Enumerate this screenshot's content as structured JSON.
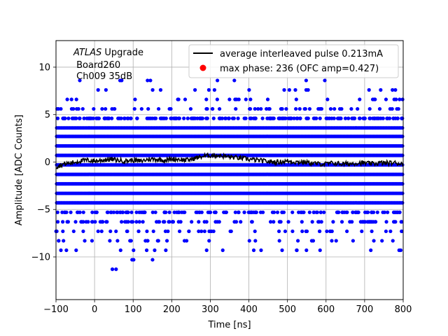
{
  "chart_data": {
    "type": "scatter",
    "title": "",
    "xlabel": "Time [ns]",
    "ylabel": "Amplitude [ADC Counts]",
    "xlim": [
      -100,
      800
    ],
    "ylim": [
      -14.5,
      12.8
    ],
    "xticks": [
      -100,
      0,
      100,
      200,
      300,
      400,
      500,
      600,
      700,
      800
    ],
    "xtick_labels": [
      "−100",
      "0",
      "100",
      "200",
      "300",
      "400",
      "500",
      "600",
      "700",
      "800"
    ],
    "yticks": [
      -10,
      -5,
      0,
      5,
      10
    ],
    "ytick_labels": [
      "−10",
      "−5",
      "0",
      "5",
      "10"
    ],
    "grid": true,
    "annotation": {
      "line1_italic": "ATLAS",
      "line1_rest": " Upgrade",
      "line2": " Board260",
      "line3": " Ch009 35dB"
    },
    "legend": {
      "placement": "upper right",
      "entries": [
        {
          "label": "average interleaved pulse 0.213mA",
          "color": "#000000",
          "marker": "line"
        },
        {
          "label": "max phase: 236 (OFC amp=0.427)",
          "color": "#ff0000",
          "marker": "circle"
        }
      ]
    },
    "series": [
      {
        "name": "max phase: 236 (OFC amp=0.427)",
        "color": "#0000ff",
        "levels": [
          {
            "y": 8.6,
            "count": 9
          },
          {
            "y": 7.6,
            "count": 17
          },
          {
            "y": 6.6,
            "count": 28
          },
          {
            "y": 5.6,
            "count": 60
          },
          {
            "y": 4.6,
            "count": 190
          },
          {
            "y": 3.6,
            "count": 220
          },
          {
            "y": 2.7,
            "count": 240
          },
          {
            "y": 1.7,
            "count": 240
          },
          {
            "y": 0.7,
            "count": 240
          },
          {
            "y": -0.3,
            "count": 240
          },
          {
            "y": -1.3,
            "count": 240
          },
          {
            "y": -2.3,
            "count": 240
          },
          {
            "y": -3.3,
            "count": 240
          },
          {
            "y": -4.3,
            "count": 220
          },
          {
            "y": -5.3,
            "count": 150
          },
          {
            "y": -6.3,
            "count": 90
          },
          {
            "y": -7.3,
            "count": 50
          },
          {
            "y": -8.3,
            "count": 30
          },
          {
            "y": -9.3,
            "count": 20
          },
          {
            "y": -10.3,
            "count": 3
          },
          {
            "y": -11.3,
            "count": 2
          }
        ]
      },
      {
        "name": "average interleaved pulse 0.213mA",
        "color": "#000000",
        "x": [
          -100,
          -80,
          -60,
          -40,
          -20,
          0,
          20,
          40,
          60,
          80,
          100,
          120,
          140,
          160,
          180,
          200,
          220,
          240,
          260,
          280,
          300,
          320,
          340,
          360,
          380,
          400,
          420,
          440,
          460,
          480,
          500,
          520,
          540,
          560,
          580,
          600,
          620,
          640,
          660,
          680,
          700,
          720,
          740,
          760,
          780,
          800
        ],
        "y": [
          -0.5,
          -0.2,
          -0.1,
          0.1,
          0.2,
          0.1,
          0.2,
          0.3,
          0.2,
          0.1,
          0.2,
          0.1,
          0.3,
          0.3,
          0.2,
          0.3,
          0.3,
          0.2,
          0.4,
          0.6,
          0.7,
          0.7,
          0.6,
          0.5,
          0.4,
          0.3,
          0.2,
          0.1,
          0.0,
          0.0,
          0.1,
          0.0,
          0.0,
          -0.1,
          -0.2,
          -0.2,
          -0.1,
          -0.2,
          -0.2,
          -0.1,
          -0.1,
          -0.2,
          -0.1,
          -0.1,
          -0.1,
          -0.2
        ]
      }
    ]
  }
}
